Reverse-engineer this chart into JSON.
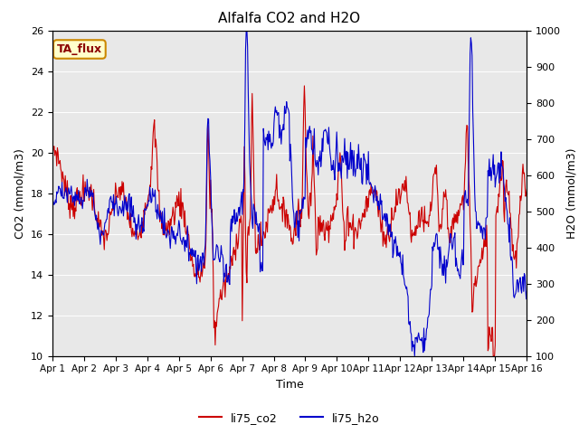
{
  "title": "Alfalfa CO2 and H2O",
  "xlabel": "Time",
  "ylabel_left": "CO2 (mmol/m3)",
  "ylabel_right": "H2O (mmol/m3)",
  "ylim_left": [
    10,
    26
  ],
  "ylim_right": [
    100,
    1000
  ],
  "xtick_labels": [
    "Apr 1",
    "Apr 2",
    "Apr 3",
    "Apr 4",
    "Apr 5",
    "Apr 6",
    "Apr 7",
    "Apr 8",
    "Apr 9",
    "Apr 10",
    "Apr 11",
    "Apr 12",
    "Apr 13",
    "Apr 14",
    "Apr 15",
    "Apr 16"
  ],
  "color_co2": "#cc0000",
  "color_h2o": "#0000cc",
  "bg_color": "#e8e8e8",
  "annotation_text": "TA_flux",
  "annotation_bg": "#ffffcc",
  "annotation_border": "#cc8800",
  "legend_labels": [
    "li75_co2",
    "li75_h2o"
  ],
  "title_fontsize": 11,
  "axis_label_fontsize": 9,
  "tick_fontsize": 8,
  "linewidth": 0.8
}
